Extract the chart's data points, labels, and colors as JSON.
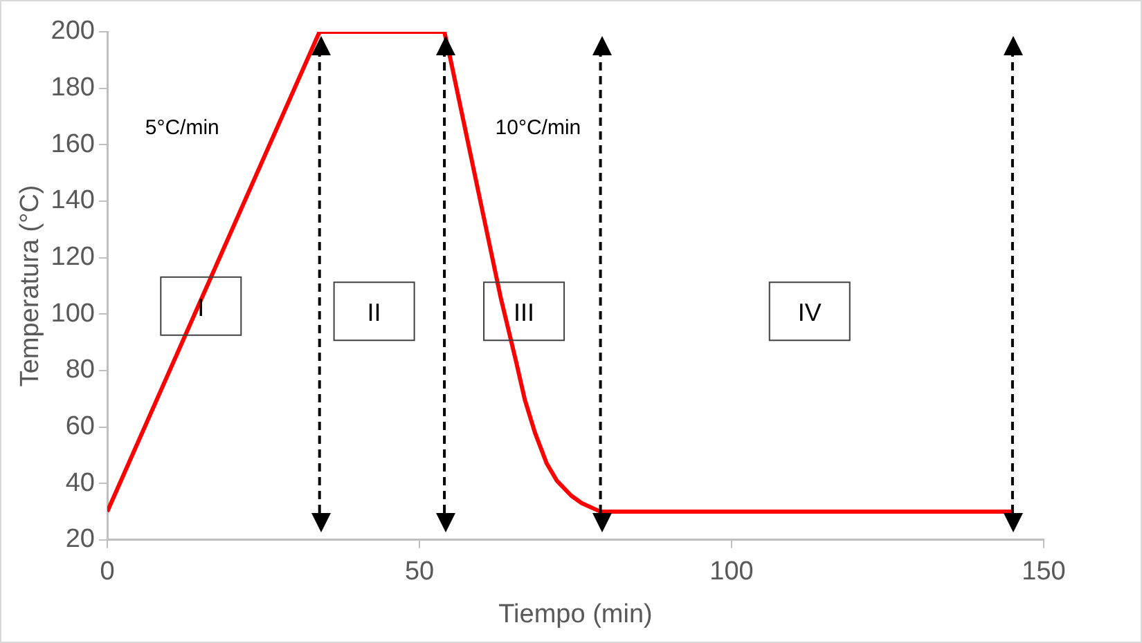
{
  "chart_data": {
    "type": "line",
    "xlabel": "Tiempo (min)",
    "ylabel": "Temperatura (°C)",
    "xlim": [
      0,
      150
    ],
    "xticks": [
      0,
      50,
      100,
      150
    ],
    "ylim": [
      20,
      200
    ],
    "yticks": [
      20,
      40,
      60,
      80,
      100,
      120,
      140,
      160,
      180,
      200
    ],
    "grid": false,
    "legend": false,
    "marker": "none",
    "line_style": "solid",
    "series": [
      {
        "color": "#ff0000",
        "x": [
          0,
          34,
          54,
          55,
          57,
          59,
          61,
          63,
          64.2,
          65.5,
          66.9,
          68.5,
          70.4,
          72,
          74.3,
          76,
          78.3,
          79,
          145
        ],
        "values": [
          30,
          200,
          200,
          190,
          169,
          148,
          127,
          106,
          95,
          83,
          69.5,
          58,
          47,
          41,
          35.7,
          33,
          30.7,
          30,
          30
        ]
      }
    ],
    "ref_lines": [
      {
        "axis": "x",
        "value": 34,
        "color": "#000000",
        "line_style": "dashed"
      },
      {
        "axis": "x",
        "value": 54,
        "color": "#000000",
        "line_style": "dashed"
      },
      {
        "axis": "x",
        "value": 79,
        "color": "#000000",
        "line_style": "dashed"
      },
      {
        "axis": "x",
        "value": 145,
        "color": "#000000",
        "line_style": "dashed"
      }
    ],
    "annotations": [
      "5°C/min",
      "10°C/min",
      "I",
      "II",
      "III",
      "IV"
    ]
  }
}
